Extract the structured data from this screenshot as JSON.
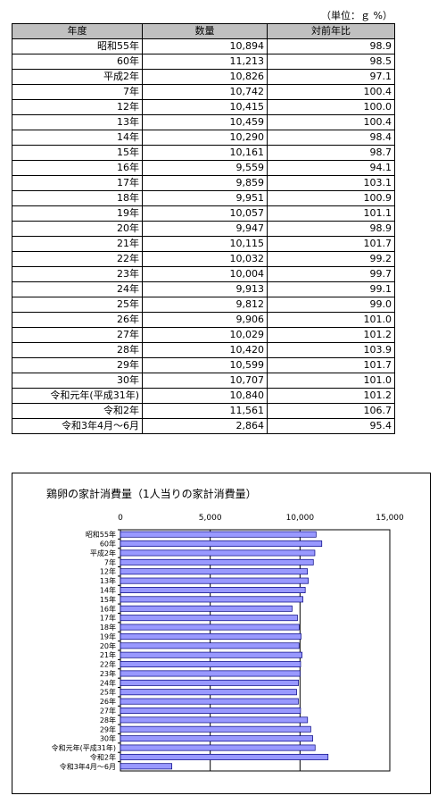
{
  "unit_note": "（単位：ｇ %）",
  "table": {
    "headers": [
      "年度",
      "数量",
      "対前年比"
    ],
    "rows": [
      [
        "昭和55年",
        "10,894",
        "98.9"
      ],
      [
        "60年",
        "11,213",
        "98.5"
      ],
      [
        "平成2年",
        "10,826",
        "97.1"
      ],
      [
        "7年",
        "10,742",
        "100.4"
      ],
      [
        "12年",
        "10,415",
        "100.0"
      ],
      [
        "13年",
        "10,459",
        "100.4"
      ],
      [
        "14年",
        "10,290",
        "98.4"
      ],
      [
        "15年",
        "10,161",
        "98.7"
      ],
      [
        "16年",
        "9,559",
        "94.1"
      ],
      [
        "17年",
        "9,859",
        "103.1"
      ],
      [
        "18年",
        "9,951",
        "100.9"
      ],
      [
        "19年",
        "10,057",
        "101.1"
      ],
      [
        "20年",
        "9,947",
        "98.9"
      ],
      [
        "21年",
        "10,115",
        "101.7"
      ],
      [
        "22年",
        "10,032",
        "99.2"
      ],
      [
        "23年",
        "10,004",
        "99.7"
      ],
      [
        "24年",
        "9,913",
        "99.1"
      ],
      [
        "25年",
        "9,812",
        "99.0"
      ],
      [
        "26年",
        "9,906",
        "101.0"
      ],
      [
        "27年",
        "10,029",
        "101.2"
      ],
      [
        "28年",
        "10,420",
        "103.9"
      ],
      [
        "29年",
        "10,599",
        "101.7"
      ],
      [
        "30年",
        "10,707",
        "101.0"
      ],
      [
        "令和元年(平成31年)",
        "10,840",
        "101.2"
      ],
      [
        "令和2年",
        "11,561",
        "106.7"
      ],
      [
        "令和3年4月～6月",
        "2,864",
        "95.4"
      ]
    ]
  },
  "chart_data": {
    "type": "bar",
    "orientation": "horizontal",
    "title": "鶏卵の家計消費量（1人当りの家計消費量）",
    "categories": [
      "昭和55年",
      "60年",
      "平成2年",
      "7年",
      "12年",
      "13年",
      "14年",
      "15年",
      "16年",
      "17年",
      "18年",
      "19年",
      "20年",
      "21年",
      "22年",
      "23年",
      "24年",
      "25年",
      "26年",
      "27年",
      "28年",
      "29年",
      "30年",
      "令和元年(平成31年)",
      "令和2年",
      "令和3年4月～6月"
    ],
    "values": [
      10894,
      11213,
      10826,
      10742,
      10415,
      10459,
      10290,
      10161,
      9559,
      9859,
      9951,
      10057,
      9947,
      10115,
      10032,
      10004,
      9913,
      9812,
      9906,
      10029,
      10420,
      10599,
      10707,
      10840,
      11561,
      2864
    ],
    "xlim": [
      0,
      15000
    ],
    "xticks": [
      0,
      5000,
      10000,
      15000
    ],
    "xtick_labels": [
      "0",
      "5,000",
      "10,000",
      "15,000"
    ],
    "grid": true,
    "bar_color": "#9999ff",
    "bar_edge": "#000080"
  }
}
